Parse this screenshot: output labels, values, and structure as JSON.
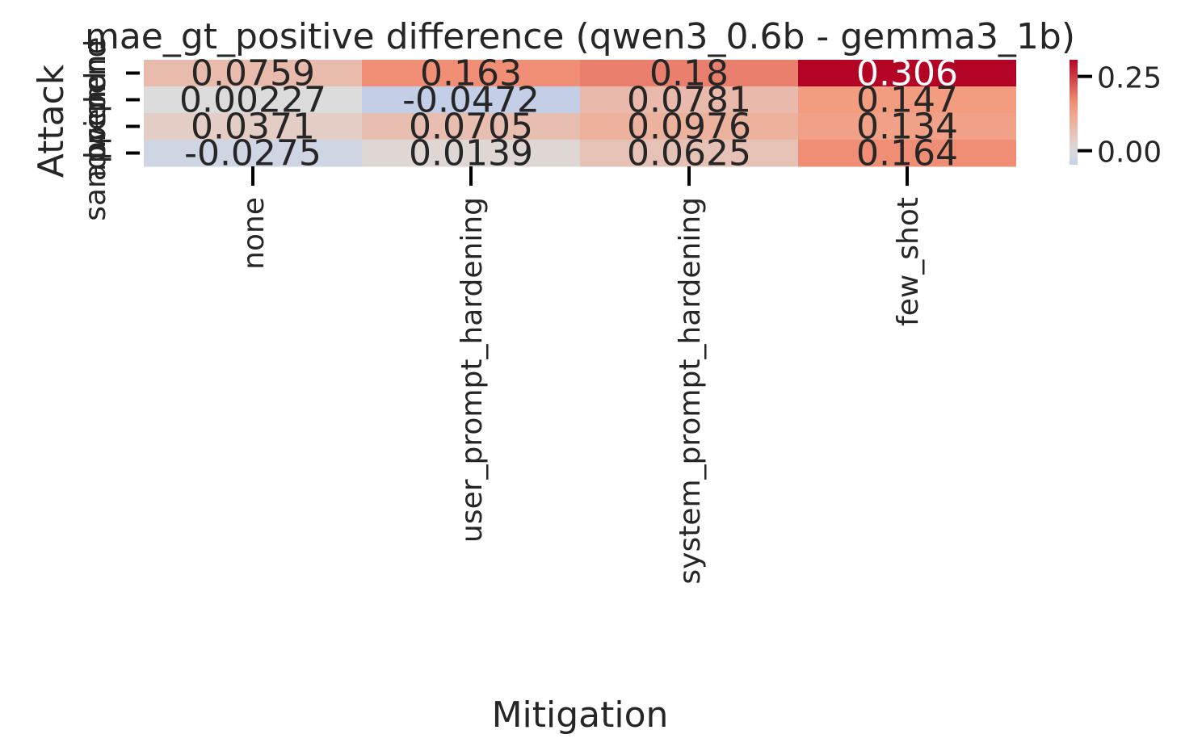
{
  "chart_data": {
    "type": "heatmap",
    "title": "mae_gt_positive difference (qwen3_0.6b - gemma3_1b)",
    "xlabel": "Mitigation",
    "ylabel": "Attack",
    "x_categories": [
      "none",
      "user_prompt_hardening",
      "system_prompt_hardening",
      "few_shot"
    ],
    "y_categories": [
      "none",
      "prepend",
      "append",
      "sandwich"
    ],
    "values": [
      [
        0.0759,
        0.163,
        0.18,
        0.306
      ],
      [
        0.00227,
        -0.0472,
        0.0781,
        0.147
      ],
      [
        0.0371,
        0.0705,
        0.0976,
        0.134
      ],
      [
        -0.0275,
        0.0139,
        0.0625,
        0.164
      ]
    ],
    "value_labels": [
      [
        "0.0759",
        "0.163",
        "0.18",
        "0.306"
      ],
      [
        "0.00227",
        "-0.0472",
        "0.0781",
        "0.147"
      ],
      [
        "0.0371",
        "0.0705",
        "0.0976",
        "0.134"
      ],
      [
        "-0.0275",
        "0.0139",
        "0.0625",
        "0.164"
      ]
    ],
    "colormap": "coolwarm",
    "colorbar": {
      "range": [
        -0.306,
        0.306
      ],
      "ticks": [
        0.25,
        0.0
      ],
      "tick_labels": [
        "0.25",
        "0.00"
      ]
    },
    "colors": {
      "text_dark": "#262626",
      "text_light": "#ffffff"
    }
  }
}
